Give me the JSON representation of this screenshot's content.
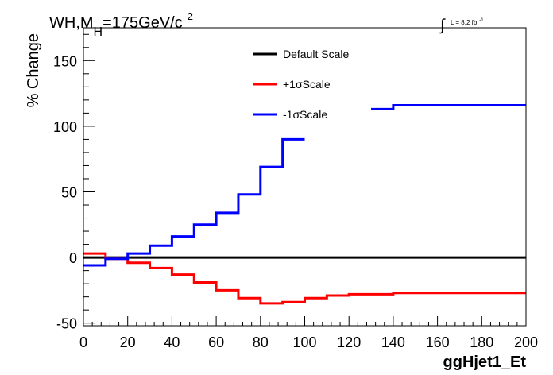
{
  "chart_data": {
    "type": "line",
    "title": "WH,M",
    "title_sub": "H",
    "title_rest": "=175GeV/c",
    "title_sup": "2",
    "lumi_label": "L = 8.2 fb",
    "lumi_sup": "-1",
    "xlabel": "ggHjet1_Et",
    "ylabel": "% Change",
    "xlim": [
      0,
      200
    ],
    "ylim": [
      -52,
      175
    ],
    "x_ticks": [
      "0",
      "20",
      "40",
      "60",
      "80",
      "100",
      "120",
      "140",
      "160",
      "180",
      "200"
    ],
    "y_ticks": [
      "-50",
      "0",
      "50",
      "100",
      "150"
    ],
    "legend_position": "top-center",
    "bin_edges": [
      0,
      10,
      20,
      30,
      40,
      50,
      60,
      70,
      80,
      90,
      100,
      110,
      120,
      130,
      140,
      150,
      160,
      170,
      180,
      190,
      200
    ],
    "series": [
      {
        "name": "Default Scale",
        "color": "#000000",
        "values": [
          0,
          0,
          0,
          0,
          0,
          0,
          0,
          0,
          0,
          0,
          0,
          0,
          0,
          0,
          0,
          0,
          0,
          0,
          0,
          0
        ]
      },
      {
        "name": "+1σScale",
        "color": "#ff0000",
        "values": [
          3,
          -1,
          -4,
          -8,
          -13,
          -19,
          -25,
          -31,
          -35,
          -34,
          -31,
          -29,
          -28,
          -28,
          -27,
          -27,
          -27,
          -27,
          -27,
          -27
        ]
      },
      {
        "name": "-1σScale",
        "color": "#0000ff",
        "values": [
          -6,
          -1,
          3,
          9,
          16,
          25,
          34,
          48,
          69,
          90,
          null,
          null,
          null,
          113,
          116,
          116,
          116,
          116,
          116,
          116
        ]
      }
    ]
  }
}
